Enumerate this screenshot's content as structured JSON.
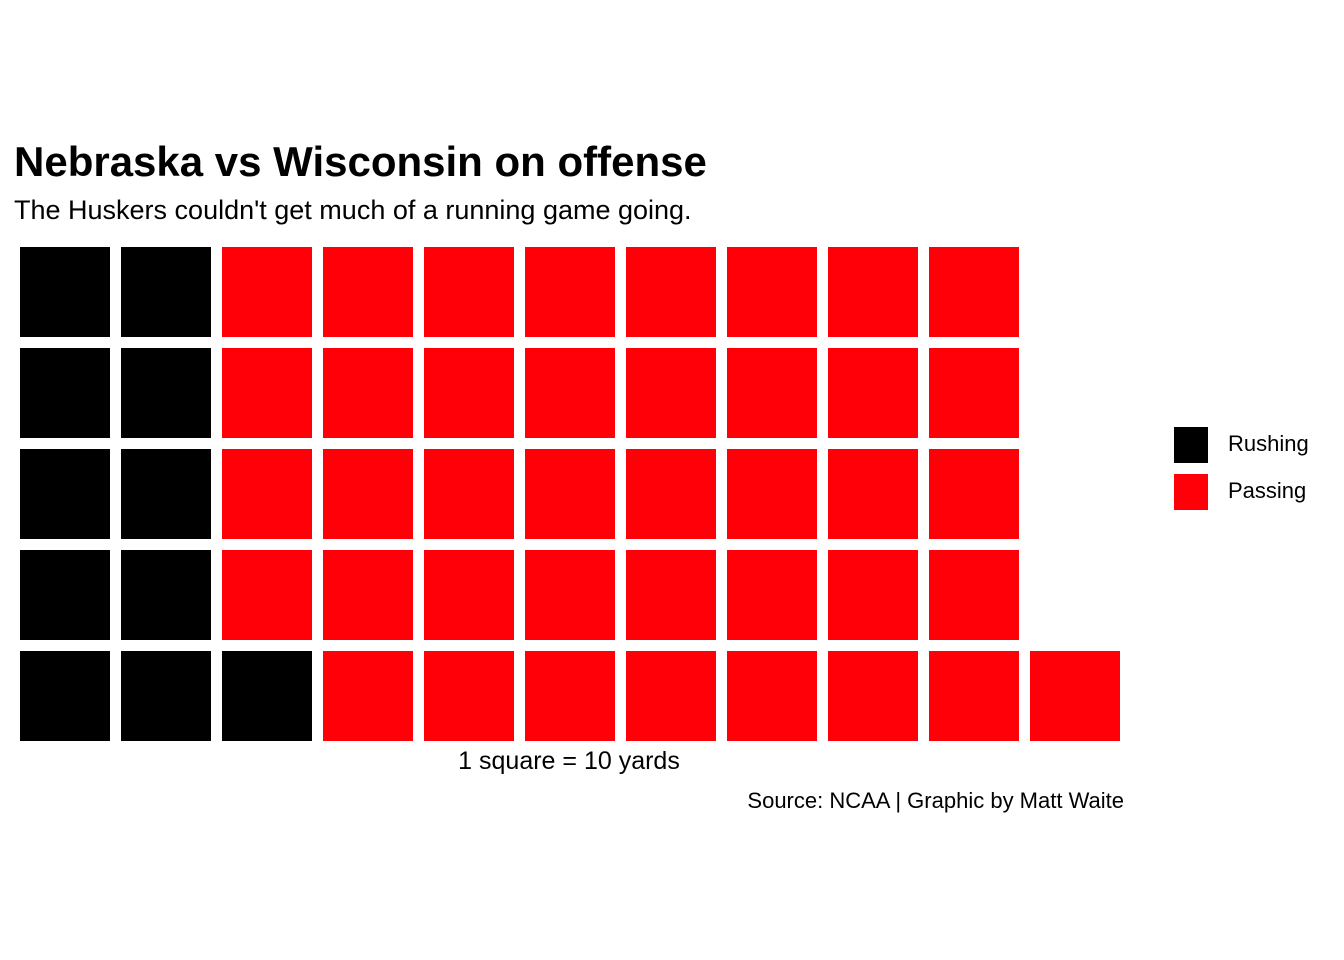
{
  "chart_data": {
    "type": "waffle",
    "title": "Nebraska vs Wisconsin on offense",
    "subtitle": "The Huskers couldn't get much of a running game going.",
    "xlabel": "1 square = 10 yards",
    "caption": "Source: NCAA | Graphic by Matt Waite",
    "rows": 5,
    "legend_position": "right",
    "series": [
      {
        "name": "Rushing",
        "value": 11,
        "color": "#000000"
      },
      {
        "name": "Passing",
        "value": 40,
        "color": "#ff0008"
      }
    ]
  }
}
